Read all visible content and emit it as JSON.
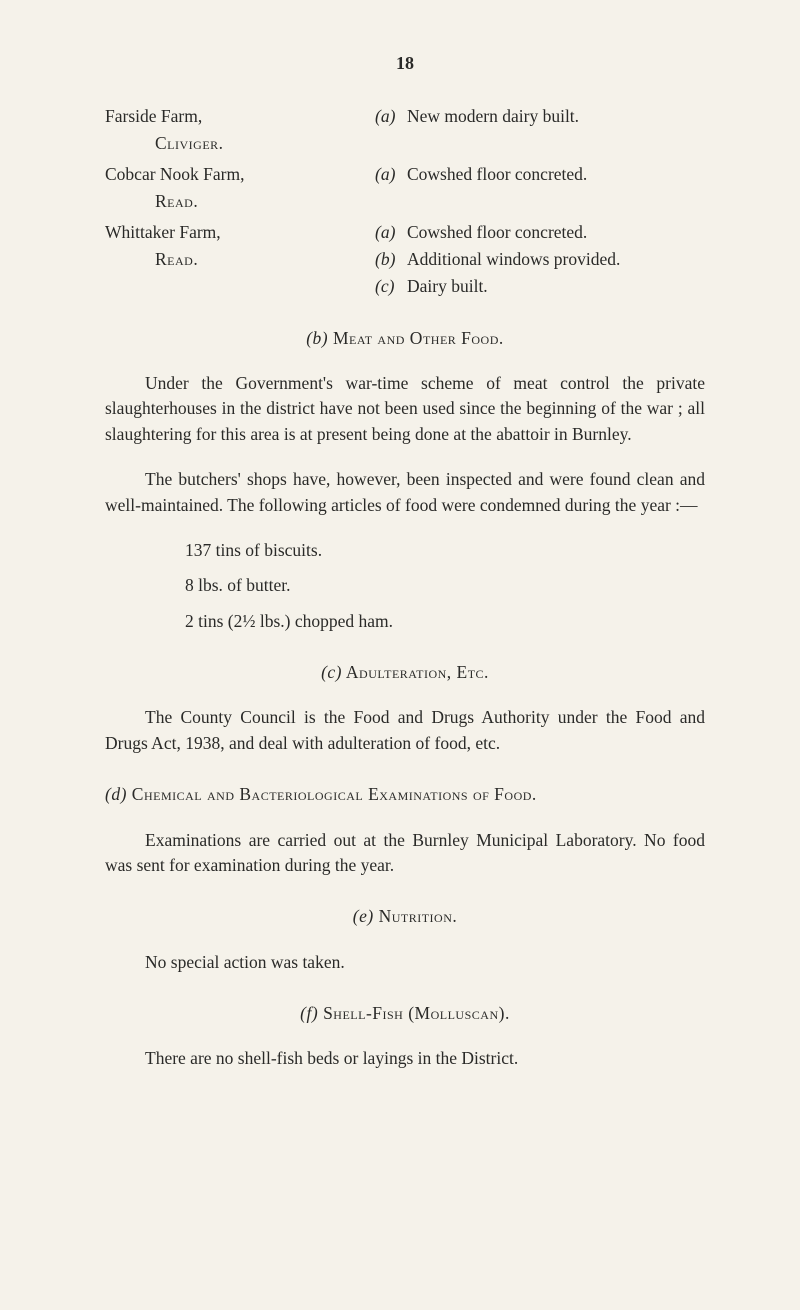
{
  "pageNumber": "18",
  "farms": {
    "entries": [
      {
        "name": "Farside Farm,",
        "location": "Cliviger.",
        "items": [
          {
            "marker": "(a)",
            "text": "New modern dairy built."
          }
        ]
      },
      {
        "name": "Cobcar Nook Farm,",
        "location": "Read.",
        "items": [
          {
            "marker": "(a)",
            "text": "Cowshed floor concreted."
          }
        ]
      },
      {
        "name": "Whittaker Farm,",
        "location": "Read.",
        "items": [
          {
            "marker": "(a)",
            "text": "Cowshed floor concreted."
          },
          {
            "marker": "(b)",
            "text": "Additional windows provided."
          },
          {
            "marker": "(c)",
            "text": "Dairy built."
          }
        ]
      }
    ]
  },
  "sectionB": {
    "marker": "(b)",
    "title": "Meat and Other Food.",
    "para1": "Under the Government's war-time scheme of meat control the private slaughterhouses in the district have not been used since the beginning of the war ; all slaughtering for this area is at present being done at the abattoir in Burnley.",
    "para2": "The butchers' shops have, however, been inspected and were found clean and well-maintained. The following articles of food were condemned during the year :—",
    "list": [
      "137 tins of biscuits.",
      "8 lbs. of butter.",
      "2 tins (2½ lbs.) chopped ham."
    ]
  },
  "sectionC": {
    "marker": "(c)",
    "title": "Adulteration, Etc.",
    "para": "The County Council is the Food and Drugs Authority under the Food and Drugs Act, 1938, and deal with adulteration of food, etc."
  },
  "sectionD": {
    "marker": "(d)",
    "title": "Chemical and Bacteriological Examinations of Food.",
    "para": "Examinations are carried out at the Burnley Municipal Laboratory. No food was sent for examination during the year."
  },
  "sectionE": {
    "marker": "(e)",
    "title": "Nutrition.",
    "para": "No special action was taken."
  },
  "sectionF": {
    "marker": "(f)",
    "title": "Shell-Fish (Molluscan).",
    "para": "There are no shell-fish beds or layings in the District."
  }
}
